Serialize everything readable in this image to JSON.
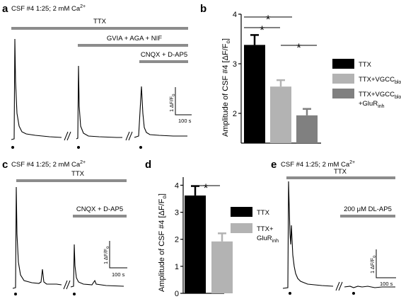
{
  "panels": {
    "a": {
      "letter": "a",
      "condition": {
        "base": "CSF #4 1:25; 2 mM Ca",
        "sup": "2+"
      },
      "bars": [
        "TTX",
        "GVIA + AGA + NIF",
        "CNQX + D-AP5"
      ],
      "scale": {
        "y_base": "1 ΔF/F",
        "y_sub": "o",
        "x": "100 s"
      }
    },
    "c": {
      "letter": "c",
      "condition": {
        "base": "CSF #4 1:25; 2 mM Ca",
        "sup": "2+"
      },
      "bars": [
        "TTX",
        "CNQX + D-AP5"
      ],
      "scale": {
        "y_base": "1 ΔF/F",
        "y_sub": "o",
        "x": "100 s"
      }
    },
    "e": {
      "letter": "e",
      "condition": {
        "base": "CSF #4 1:25; 2 mM Ca",
        "sup": "2+"
      },
      "bars": [
        "TTX",
        "200 μM DL-AP5"
      ],
      "scale": {
        "y_base": "1 ΔF/F",
        "y_sub": "o",
        "x": "100 s"
      }
    },
    "b": {
      "letter": "b"
    },
    "d": {
      "letter": "d"
    }
  },
  "chart_data": [
    {
      "panel": "b",
      "type": "bar",
      "ylabel": "Amplitude of CSF #4 [ΔF/F",
      "ylabel_sub": "o",
      "ylabel_end": "]",
      "ylim": [
        1.4,
        4.0
      ],
      "yticks": [
        2,
        3,
        4
      ],
      "categories": [
        "TTX",
        "TTX+VGCCblock",
        "TTX+VGCCblock+GluRinh"
      ],
      "values": [
        3.38,
        2.54,
        1.96
      ],
      "errors": [
        0.2,
        0.13,
        0.13
      ],
      "colors": [
        "#000000",
        "#b3b3b3",
        "#808080"
      ],
      "significance": [
        "*",
        "*",
        "*"
      ],
      "legend": [
        {
          "base": "TTX",
          "sub": ""
        },
        {
          "base": "TTX+VGCC",
          "sub": "block"
        },
        {
          "base": "TTX+VGCC",
          "sub": "block",
          "line2": "+GluR",
          "sub2": "inh"
        }
      ]
    },
    {
      "panel": "d",
      "type": "bar",
      "ylabel": "Amplitude of CSF #4 [ΔF/F",
      "ylabel_sub": "o",
      "ylabel_end": "]",
      "ylim": [
        0,
        4.3
      ],
      "yticks": [
        0,
        1,
        2,
        3,
        4
      ],
      "categories": [
        "TTX",
        "TTX+GluRinh"
      ],
      "values": [
        3.62,
        1.92
      ],
      "errors": [
        0.35,
        0.3
      ],
      "colors": [
        "#000000",
        "#b3b3b3"
      ],
      "significance": [
        "*"
      ],
      "legend": [
        {
          "base": "TTX",
          "sub": ""
        },
        {
          "base": "TTX+",
          "sub": "",
          "line2": "GluR",
          "sub2": "inh"
        }
      ]
    }
  ],
  "colors": {
    "bar_gray": "#8c8c8c",
    "trace": "#000000"
  }
}
